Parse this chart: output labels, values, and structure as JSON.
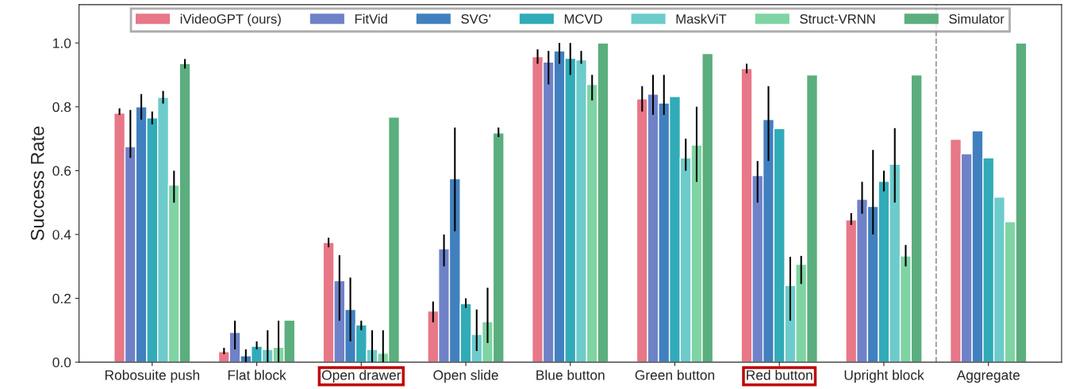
{
  "chart_data": {
    "type": "bar",
    "ylabel": "Success Rate",
    "categories": [
      "Robosuite push",
      "Flat block",
      "Open drawer",
      "Open slide",
      "Blue button",
      "Green button",
      "Red button",
      "Upright block",
      "Aggregate"
    ],
    "series": [
      {
        "name": "iVideoGPT (ours)",
        "color": "#e87787",
        "values": [
          0.78,
          0.033,
          0.375,
          0.16,
          0.957,
          0.825,
          0.92,
          0.446,
          0.698
        ],
        "errors": [
          [
            0.775,
            0.795
          ],
          [
            0.025,
            0.045
          ],
          [
            0.36,
            0.39
          ],
          [
            0.125,
            0.19
          ],
          [
            0.935,
            0.98
          ],
          [
            0.785,
            0.865
          ],
          [
            0.905,
            0.935
          ],
          [
            0.43,
            0.467
          ],
          null
        ]
      },
      {
        "name": "FitVid",
        "color": "#6f82c8",
        "values": [
          0.675,
          0.093,
          0.255,
          0.355,
          0.94,
          0.84,
          0.585,
          0.51,
          0.653
        ],
        "errors": [
          [
            0.64,
            0.79
          ],
          [
            0.04,
            0.13
          ],
          [
            0.13,
            0.335
          ],
          [
            0.3,
            0.4
          ],
          [
            0.87,
            0.975
          ],
          [
            0.775,
            0.9
          ],
          [
            0.5,
            0.63
          ],
          [
            0.465,
            0.565
          ],
          null
        ]
      },
      {
        "name": "SVG'",
        "color": "#4180bf",
        "values": [
          0.8,
          0.02,
          0.165,
          0.575,
          0.975,
          0.812,
          0.76,
          0.488,
          0.725
        ],
        "errors": [
          [
            0.76,
            0.84
          ],
          [
            0.0,
            0.04
          ],
          [
            0.065,
            0.265
          ],
          [
            0.41,
            0.735
          ],
          [
            0.935,
            1.0
          ],
          [
            0.775,
            0.9
          ],
          [
            0.63,
            0.865
          ],
          [
            0.4,
            0.665
          ],
          null
        ]
      },
      {
        "name": "MCVD",
        "color": "#31abb8",
        "values": [
          0.765,
          0.05,
          0.117,
          0.183,
          0.952,
          0.832,
          0.732,
          0.567,
          0.64
        ],
        "errors": [
          [
            0.745,
            0.785
          ],
          [
            0.04,
            0.065
          ],
          [
            0.1,
            0.13
          ],
          [
            0.17,
            0.2
          ],
          [
            0.9,
            1.0
          ],
          null,
          null,
          [
            0.535,
            0.6
          ],
          null
        ]
      },
      {
        "name": "MaskViT",
        "color": "#6dcbcb",
        "values": [
          0.83,
          0.04,
          0.04,
          0.087,
          0.947,
          0.64,
          0.24,
          0.62,
          0.517
        ],
        "errors": [
          [
            0.81,
            0.85
          ],
          [
            0.0,
            0.1
          ],
          [
            0.0,
            0.1
          ],
          [
            0.035,
            0.165
          ],
          [
            0.935,
            0.975
          ],
          [
            0.6,
            0.7
          ],
          [
            0.13,
            0.33
          ],
          [
            0.5,
            0.733
          ],
          null
        ]
      },
      {
        "name": "Struct-VRNN",
        "color": "#7fd4a3",
        "values": [
          0.555,
          0.047,
          0.028,
          0.127,
          0.87,
          0.68,
          0.307,
          0.333,
          0.44
        ],
        "errors": [
          [
            0.5,
            0.6
          ],
          [
            0.0,
            0.13
          ],
          [
            0.0,
            0.1
          ],
          [
            0.06,
            0.233
          ],
          [
            0.82,
            0.9
          ],
          [
            0.565,
            0.8
          ],
          [
            0.245,
            0.333
          ],
          [
            0.3,
            0.367
          ],
          null
        ]
      },
      {
        "name": "Simulator",
        "color": "#5bae7d",
        "values": [
          0.935,
          0.132,
          0.768,
          0.718,
          1.0,
          0.967,
          0.9,
          0.9,
          1.0
        ],
        "errors": [
          [
            0.92,
            0.95
          ],
          null,
          null,
          [
            0.705,
            0.735
          ],
          null,
          null,
          null,
          null,
          null
        ]
      }
    ],
    "ylim": [
      0,
      1.12
    ],
    "yticks": [
      {
        "value": 0,
        "label": "0.0"
      },
      {
        "value": 0.2,
        "label": "0.2"
      },
      {
        "value": 0.4,
        "label": "0.4"
      },
      {
        "value": 0.6,
        "label": "0.6"
      },
      {
        "value": 0.8,
        "label": "0.8"
      },
      {
        "value": 1.0,
        "label": "1.0"
      }
    ],
    "legend": "top",
    "grid": false
  }
}
